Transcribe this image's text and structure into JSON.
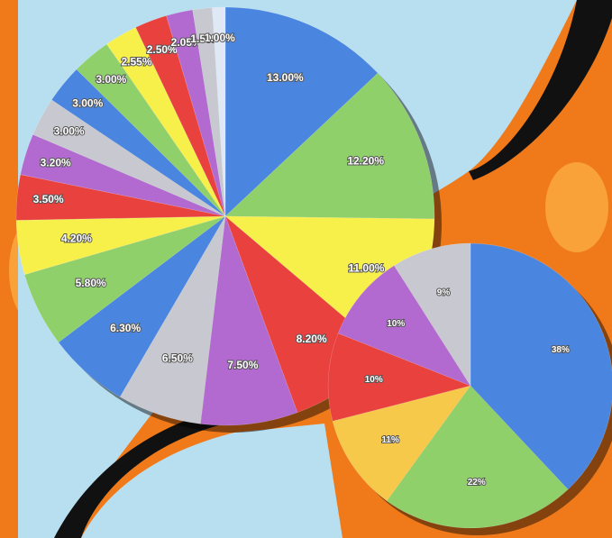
{
  "chart_data": [
    {
      "type": "pie",
      "values": [
        13.0,
        12.2,
        11.0,
        8.2,
        7.5,
        6.5,
        6.3,
        5.8,
        4.2,
        3.5,
        3.2,
        3.0,
        3.0,
        3.0,
        2.55,
        2.5,
        2.05,
        1.5,
        1.0
      ],
      "value_labels": [
        "13.00%",
        "12.20%",
        "11.00%",
        "8.20%",
        "7.50%",
        "6.50%",
        "6.30%",
        "5.80%",
        "4.20%",
        "3.50%",
        "3.20%",
        "3.00%",
        "3.00%",
        "3.00%",
        "2.55%",
        "2.50%",
        "2.05%",
        "1.50%",
        "1.00%"
      ],
      "colors": [
        "#4a86e0",
        "#8fd06a",
        "#f7ef4a",
        "#e8413e",
        "#b36ad0",
        "#c8c8d0",
        "#4a86e0",
        "#8fd06a",
        "#f7ef4a",
        "#e8413e",
        "#b36ad0",
        "#c8c8d0",
        "#4a86e0",
        "#8fd06a",
        "#f7ef4a",
        "#e8413e",
        "#b36ad0",
        "#c8c8d0",
        "#dfe8f4"
      ]
    },
    {
      "type": "pie",
      "values": [
        38,
        22,
        11,
        10,
        10,
        9
      ],
      "value_labels": [
        "38%",
        "22%",
        "11%",
        "10%",
        "10%",
        "9%"
      ],
      "colors": [
        "#4a86e0",
        "#8fd06a",
        "#f7c94a",
        "#e8413e",
        "#b36ad0",
        "#c8c8d0"
      ]
    }
  ]
}
